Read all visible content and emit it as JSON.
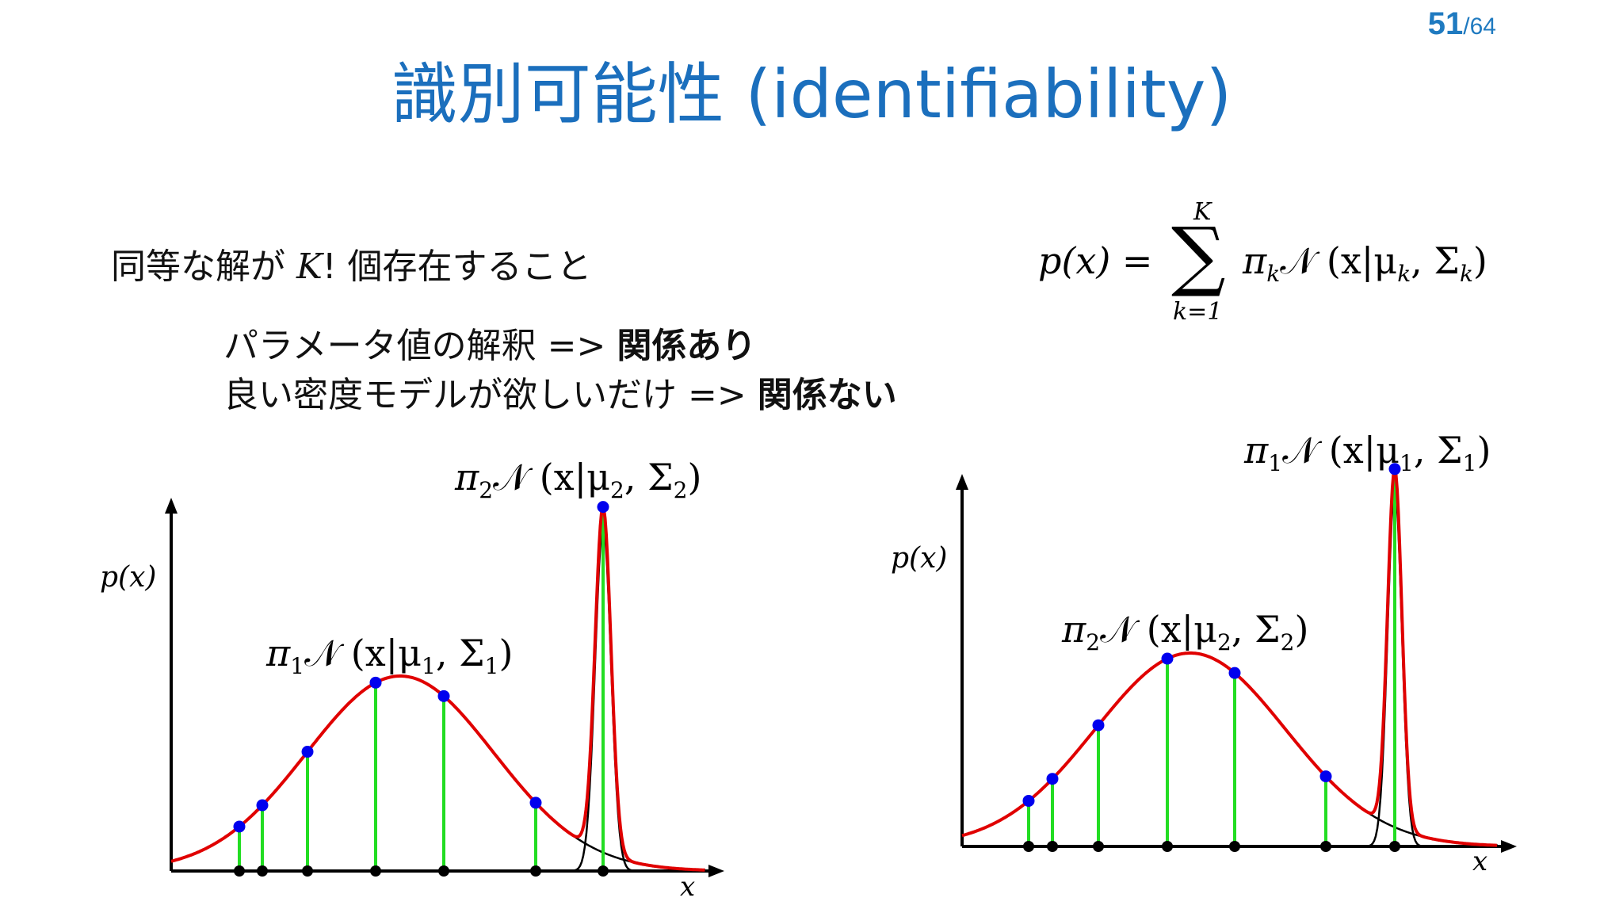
{
  "page": {
    "current": "51",
    "total": "/64"
  },
  "title": "識別可能性 (identifiability)",
  "lines": {
    "l1_prefix": "同等な解が ",
    "l1_K": "K",
    "l1_suffix": "! 個存在すること",
    "l2_text": "パラメータ値の解釈 => ",
    "l2_bold": "関係あり",
    "l3_text": "良い密度モデルが欲しいだけ => ",
    "l3_bold": "関係ない"
  },
  "formula": {
    "lhs": "p(x) =",
    "upper": "K",
    "lower": "k=1",
    "rhs": "π",
    "rhs_sub": "k",
    "rhs_rest": "𝒩 (x|μ",
    "rhs_sub2": "k",
    "rhs_rest2": ", Σ",
    "rhs_sub3": "k",
    "rhs_end": ")",
    "sum_symbol": "∑"
  },
  "left_plot": {
    "ylabel": "p(x)",
    "xlabel": "x",
    "label_wide_pi": "π",
    "label_wide_sub": "1",
    "label_wide_rest": "𝒩 (x|μ",
    "label_wide_sub2": "1",
    "label_wide_rest2": ", Σ",
    "label_wide_sub3": "1",
    "label_wide_end": ")",
    "label_peak_pi": "π",
    "label_peak_sub": "2",
    "label_peak_rest": "𝒩 (x|μ",
    "label_peak_sub2": "2",
    "label_peak_rest2": ", Σ",
    "label_peak_sub3": "2",
    "label_peak_end": ")"
  },
  "right_plot": {
    "ylabel": "p(x)",
    "xlabel": "x",
    "label_wide_pi": "π",
    "label_wide_sub": "2",
    "label_wide_rest": "𝒩 (x|μ",
    "label_wide_sub2": "2",
    "label_wide_rest2": ", Σ",
    "label_wide_sub3": "2",
    "label_wide_end": ")",
    "label_peak_pi": "π",
    "label_peak_sub": "1",
    "label_peak_rest": "𝒩 (x|μ",
    "label_peak_sub2": "1",
    "label_peak_rest2": ", Σ",
    "label_peak_sub3": "1",
    "label_peak_end": ")"
  },
  "colors": {
    "title": "#1b6fbd",
    "mixture_curve": "#e00000",
    "component_curve": "#000000",
    "sample_line": "#22dd22",
    "sample_point": "#0000ee",
    "axis_point": "#000000"
  }
}
